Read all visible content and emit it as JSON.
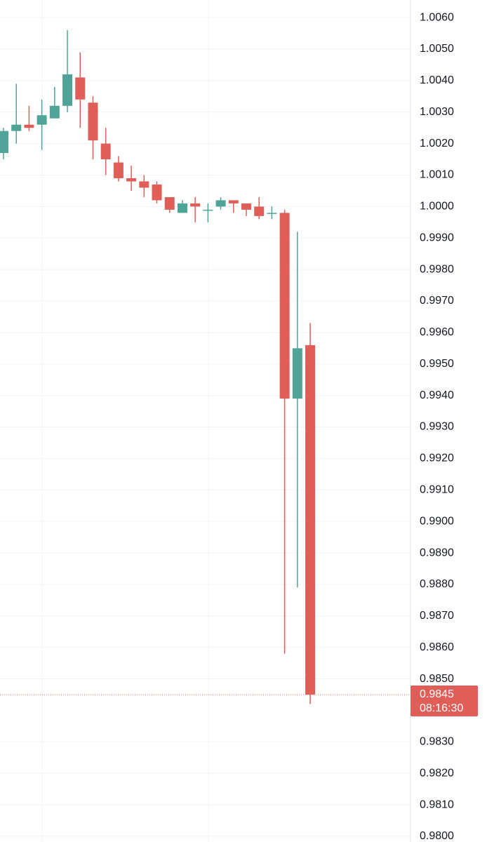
{
  "chart_data": {
    "type": "candlestick",
    "open": [
      1.0017,
      1.0024,
      1.0026,
      1.0026,
      1.0028,
      1.0032,
      1.0041,
      1.0033,
      1.002,
      1.0014,
      1.0009,
      1.0008,
      1.0007,
      1.0003,
      0.9998,
      1.0001,
      0.9999,
      1.0,
      1.0002,
      1.0001,
      1.0,
      0.9998,
      0.9998,
      0.9939,
      0.9956
    ],
    "high": [
      1.0025,
      1.0039,
      1.0032,
      1.0034,
      1.0038,
      1.0056,
      1.0049,
      1.0035,
      1.0025,
      1.0016,
      1.0013,
      1.001,
      1.0008,
      1.0003,
      1.0002,
      1.0003,
      1.0001,
      1.0003,
      1.0002,
      1.0001,
      1.0003,
      1.0,
      0.9999,
      0.9992,
      0.9963
    ],
    "low": [
      1.0015,
      1.002,
      1.0024,
      1.0018,
      1.0028,
      1.003,
      1.0025,
      1.0015,
      1.001,
      1.0008,
      1.0005,
      1.0003,
      1.0001,
      0.9998,
      0.9998,
      0.9995,
      0.9995,
      0.9999,
      0.9998,
      0.9997,
      0.9996,
      0.9996,
      0.9858,
      0.9879,
      0.9842
    ],
    "close": [
      1.0024,
      1.0026,
      1.0025,
      1.0029,
      1.0032,
      1.0042,
      1.0034,
      1.0021,
      1.0015,
      1.0009,
      1.0008,
      1.0006,
      1.0002,
      0.9999,
      1.0001,
      1.0,
      0.9999,
      1.0002,
      1.0001,
      0.9999,
      0.9997,
      0.9998,
      0.9939,
      0.9955,
      0.9845
    ],
    "up_color": "#4fa397",
    "down_color": "#df5f58",
    "ylim": [
      0.97982,
      1.00656
    ],
    "yticks": [
      {
        "value": 1.006,
        "label": "1.0060"
      },
      {
        "value": 1.005,
        "label": "1.0050"
      },
      {
        "value": 1.004,
        "label": "1.0040"
      },
      {
        "value": 1.003,
        "label": "1.0030"
      },
      {
        "value": 1.002,
        "label": "1.0020"
      },
      {
        "value": 1.001,
        "label": "1.0010"
      },
      {
        "value": 1.0,
        "label": "1.0000"
      },
      {
        "value": 0.999,
        "label": "0.9990"
      },
      {
        "value": 0.998,
        "label": "0.9980"
      },
      {
        "value": 0.997,
        "label": "0.9970"
      },
      {
        "value": 0.996,
        "label": "0.9960"
      },
      {
        "value": 0.995,
        "label": "0.9950"
      },
      {
        "value": 0.994,
        "label": "0.9940"
      },
      {
        "value": 0.993,
        "label": "0.9930"
      },
      {
        "value": 0.992,
        "label": "0.9920"
      },
      {
        "value": 0.991,
        "label": "0.9910"
      },
      {
        "value": 0.99,
        "label": "0.9900"
      },
      {
        "value": 0.989,
        "label": "0.9890"
      },
      {
        "value": 0.988,
        "label": "0.9880"
      },
      {
        "value": 0.987,
        "label": "0.9870"
      },
      {
        "value": 0.986,
        "label": "0.9860"
      },
      {
        "value": 0.985,
        "label": "0.9850"
      },
      {
        "value": 0.983,
        "label": "0.9830"
      },
      {
        "value": 0.982,
        "label": "0.9820"
      },
      {
        "value": 0.981,
        "label": "0.9810"
      },
      {
        "value": 0.98,
        "label": "0.9800"
      }
    ],
    "grid": true,
    "last_price": 0.9845,
    "countdown": "08:16:30"
  }
}
